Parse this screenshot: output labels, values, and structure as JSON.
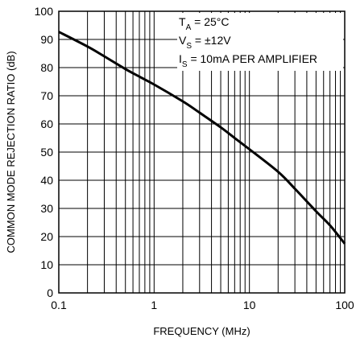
{
  "chart_data": {
    "type": "line",
    "xlabel": "FREQUENCY (MHz)",
    "ylabel": "COMMON MODE REJECTION RATIO (dB)",
    "xscale": "log",
    "xlim": [
      0.1,
      100
    ],
    "ylim": [
      0,
      100
    ],
    "grid": true,
    "x_tick_labels": [
      "0.1",
      "1",
      "10",
      "100"
    ],
    "y_tick_labels": [
      "0",
      "10",
      "20",
      "30",
      "40",
      "50",
      "60",
      "70",
      "80",
      "90",
      "100"
    ],
    "x_ticks": [
      0.1,
      1,
      10,
      100
    ],
    "y_ticks": [
      0,
      10,
      20,
      30,
      40,
      50,
      60,
      70,
      80,
      90,
      100
    ],
    "annotations": [
      {
        "main": "T",
        "sub": "A",
        "rest": " = 25°C"
      },
      {
        "main": "V",
        "sub": "S",
        "rest": " = ±12V"
      },
      {
        "main": "I",
        "sub": "S",
        "rest": " = 10mA PER AMPLIFIER"
      }
    ],
    "series": [
      {
        "x": [
          0.1,
          0.2,
          0.3,
          0.5,
          0.7,
          1,
          2,
          3,
          5,
          7,
          10,
          20,
          30,
          50,
          70,
          100
        ],
        "y": [
          92.7,
          87.5,
          84.0,
          79.5,
          76.8,
          74.0,
          68.0,
          64.0,
          58.8,
          55.0,
          51.0,
          43.0,
          37.0,
          29.0,
          24.0,
          17.5
        ]
      }
    ]
  }
}
